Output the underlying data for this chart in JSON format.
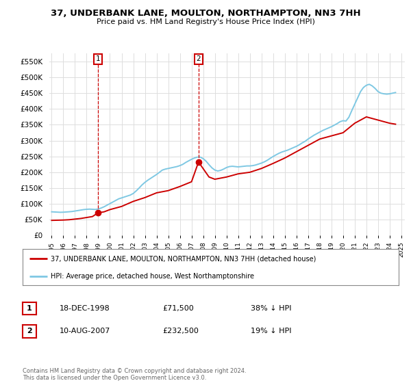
{
  "title": "37, UNDERBANK LANE, MOULTON, NORTHAMPTON, NN3 7HH",
  "subtitle": "Price paid vs. HM Land Registry's House Price Index (HPI)",
  "ylabel_ticks": [
    "£0",
    "£50K",
    "£100K",
    "£150K",
    "£200K",
    "£250K",
    "£300K",
    "£350K",
    "£400K",
    "£450K",
    "£500K",
    "£550K"
  ],
  "ytick_values": [
    0,
    50000,
    100000,
    150000,
    200000,
    250000,
    300000,
    350000,
    400000,
    450000,
    500000,
    550000
  ],
  "ylim": [
    0,
    575000
  ],
  "xlim_start": 1994.8,
  "xlim_end": 2025.3,
  "hpi_color": "#7ec8e3",
  "price_color": "#cc0000",
  "marker_color": "#cc0000",
  "grid_color": "#dddddd",
  "bg_color": "#ffffff",
  "sale1_x": 1998.96,
  "sale1_y": 71500,
  "sale1_label": "1",
  "sale2_x": 2007.6,
  "sale2_y": 232500,
  "sale2_label": "2",
  "legend_label_red": "37, UNDERBANK LANE, MOULTON, NORTHAMPTON, NN3 7HH (detached house)",
  "legend_label_blue": "HPI: Average price, detached house, West Northamptonshire",
  "table_row1": [
    "1",
    "18-DEC-1998",
    "£71,500",
    "38% ↓ HPI"
  ],
  "table_row2": [
    "2",
    "10-AUG-2007",
    "£232,500",
    "19% ↓ HPI"
  ],
  "copyright_text": "Contains HM Land Registry data © Crown copyright and database right 2024.\nThis data is licensed under the Open Government Licence v3.0.",
  "hpi_x": [
    1995.0,
    1995.25,
    1995.5,
    1995.75,
    1996.0,
    1996.25,
    1996.5,
    1996.75,
    1997.0,
    1997.25,
    1997.5,
    1997.75,
    1998.0,
    1998.25,
    1998.5,
    1998.75,
    1999.0,
    1999.25,
    1999.5,
    1999.75,
    2000.0,
    2000.25,
    2000.5,
    2000.75,
    2001.0,
    2001.25,
    2001.5,
    2001.75,
    2002.0,
    2002.25,
    2002.5,
    2002.75,
    2003.0,
    2003.25,
    2003.5,
    2003.75,
    2004.0,
    2004.25,
    2004.5,
    2004.75,
    2005.0,
    2005.25,
    2005.5,
    2005.75,
    2006.0,
    2006.25,
    2006.5,
    2006.75,
    2007.0,
    2007.25,
    2007.5,
    2007.75,
    2008.0,
    2008.25,
    2008.5,
    2008.75,
    2009.0,
    2009.25,
    2009.5,
    2009.75,
    2010.0,
    2010.25,
    2010.5,
    2010.75,
    2011.0,
    2011.25,
    2011.5,
    2011.75,
    2012.0,
    2012.25,
    2012.5,
    2012.75,
    2013.0,
    2013.25,
    2013.5,
    2013.75,
    2014.0,
    2014.25,
    2014.5,
    2014.75,
    2015.0,
    2015.25,
    2015.5,
    2015.75,
    2016.0,
    2016.25,
    2016.5,
    2016.75,
    2017.0,
    2017.25,
    2017.5,
    2017.75,
    2018.0,
    2018.25,
    2018.5,
    2018.75,
    2019.0,
    2019.25,
    2019.5,
    2019.75,
    2020.0,
    2020.25,
    2020.5,
    2020.75,
    2021.0,
    2021.25,
    2021.5,
    2021.75,
    2022.0,
    2022.25,
    2022.5,
    2022.75,
    2023.0,
    2023.25,
    2023.5,
    2023.75,
    2024.0,
    2024.25,
    2024.5
  ],
  "hpi_y": [
    75000,
    74500,
    74000,
    73500,
    73800,
    74500,
    75200,
    76000,
    77500,
    79000,
    80500,
    82000,
    83000,
    83500,
    83000,
    82500,
    84000,
    87000,
    91000,
    96000,
    101000,
    106000,
    111000,
    116000,
    119000,
    122000,
    125000,
    128000,
    133000,
    141000,
    150000,
    160000,
    168000,
    175000,
    181000,
    187000,
    193000,
    200000,
    207000,
    210000,
    212000,
    214000,
    216000,
    218000,
    221000,
    225000,
    231000,
    236000,
    241000,
    245000,
    248000,
    248000,
    243000,
    235000,
    224000,
    214000,
    207000,
    204000,
    206000,
    210000,
    215000,
    218000,
    219000,
    218000,
    217000,
    218000,
    219000,
    220000,
    220000,
    221000,
    223000,
    226000,
    229000,
    233000,
    238000,
    244000,
    250000,
    255000,
    260000,
    264000,
    267000,
    270000,
    274000,
    278000,
    282000,
    287000,
    293000,
    298000,
    305000,
    311000,
    317000,
    322000,
    327000,
    332000,
    336000,
    340000,
    344000,
    349000,
    354000,
    360000,
    363000,
    362000,
    374000,
    395000,
    415000,
    435000,
    455000,
    468000,
    475000,
    478000,
    473000,
    465000,
    455000,
    450000,
    448000,
    447000,
    448000,
    450000,
    452000
  ],
  "price_x": [
    1995.0,
    1995.5,
    1996.0,
    1996.5,
    1997.0,
    1997.5,
    1998.0,
    1998.5,
    1998.96,
    1999.5,
    2000.0,
    2001.0,
    2002.0,
    2003.0,
    2004.0,
    2005.0,
    2006.0,
    2007.0,
    2007.6,
    2008.5,
    2009.0,
    2010.0,
    2011.0,
    2012.0,
    2013.0,
    2014.0,
    2015.0,
    2016.0,
    2017.0,
    2018.0,
    2019.0,
    2020.0,
    2021.0,
    2022.0,
    2023.0,
    2024.0,
    2024.5
  ],
  "price_y": [
    48000,
    48500,
    49000,
    50000,
    52000,
    54000,
    57000,
    60000,
    71500,
    75000,
    82000,
    92000,
    108000,
    120000,
    135000,
    142000,
    155000,
    170000,
    232500,
    185000,
    178000,
    185000,
    195000,
    200000,
    212000,
    228000,
    245000,
    265000,
    285000,
    305000,
    315000,
    325000,
    355000,
    375000,
    365000,
    355000,
    352000
  ]
}
